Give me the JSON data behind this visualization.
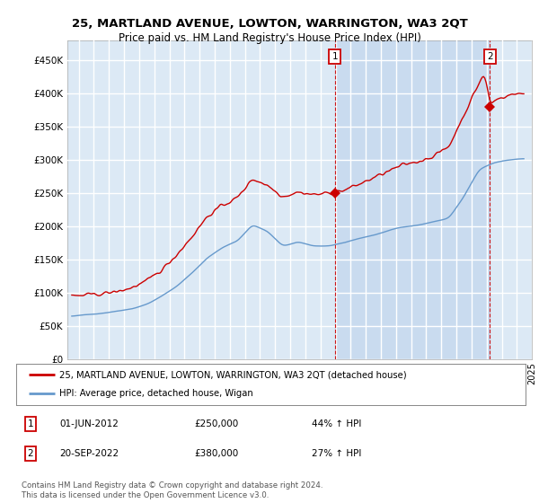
{
  "title": "25, MARTLAND AVENUE, LOWTON, WARRINGTON, WA3 2QT",
  "subtitle": "Price paid vs. HM Land Registry's House Price Index (HPI)",
  "bg_color": "#dce9f5",
  "grid_color": "#ffffff",
  "red_line_color": "#cc0000",
  "blue_line_color": "#6699cc",
  "shade_color": "#c5d8ee",
  "ylim": [
    0,
    480000
  ],
  "yticks": [
    0,
    50000,
    100000,
    150000,
    200000,
    250000,
    300000,
    350000,
    400000,
    450000
  ],
  "ytick_labels": [
    "£0",
    "£50K",
    "£100K",
    "£150K",
    "£200K",
    "£250K",
    "£300K",
    "£350K",
    "£400K",
    "£450K"
  ],
  "sale1_year": 2012,
  "sale1_month": 6,
  "sale1_price": 250000,
  "sale2_year": 2022,
  "sale2_month": 9,
  "sale2_price": 380000,
  "legend_label_red": "25, MARTLAND AVENUE, LOWTON, WARRINGTON, WA3 2QT (detached house)",
  "legend_label_blue": "HPI: Average price, detached house, Wigan",
  "annotation1_date": "01-JUN-2012",
  "annotation1_price": "£250,000",
  "annotation1_pct": "44% ↑ HPI",
  "annotation2_date": "20-SEP-2022",
  "annotation2_price": "£380,000",
  "annotation2_pct": "27% ↑ HPI",
  "footer": "Contains HM Land Registry data © Crown copyright and database right 2024.\nThis data is licensed under the Open Government Licence v3.0."
}
